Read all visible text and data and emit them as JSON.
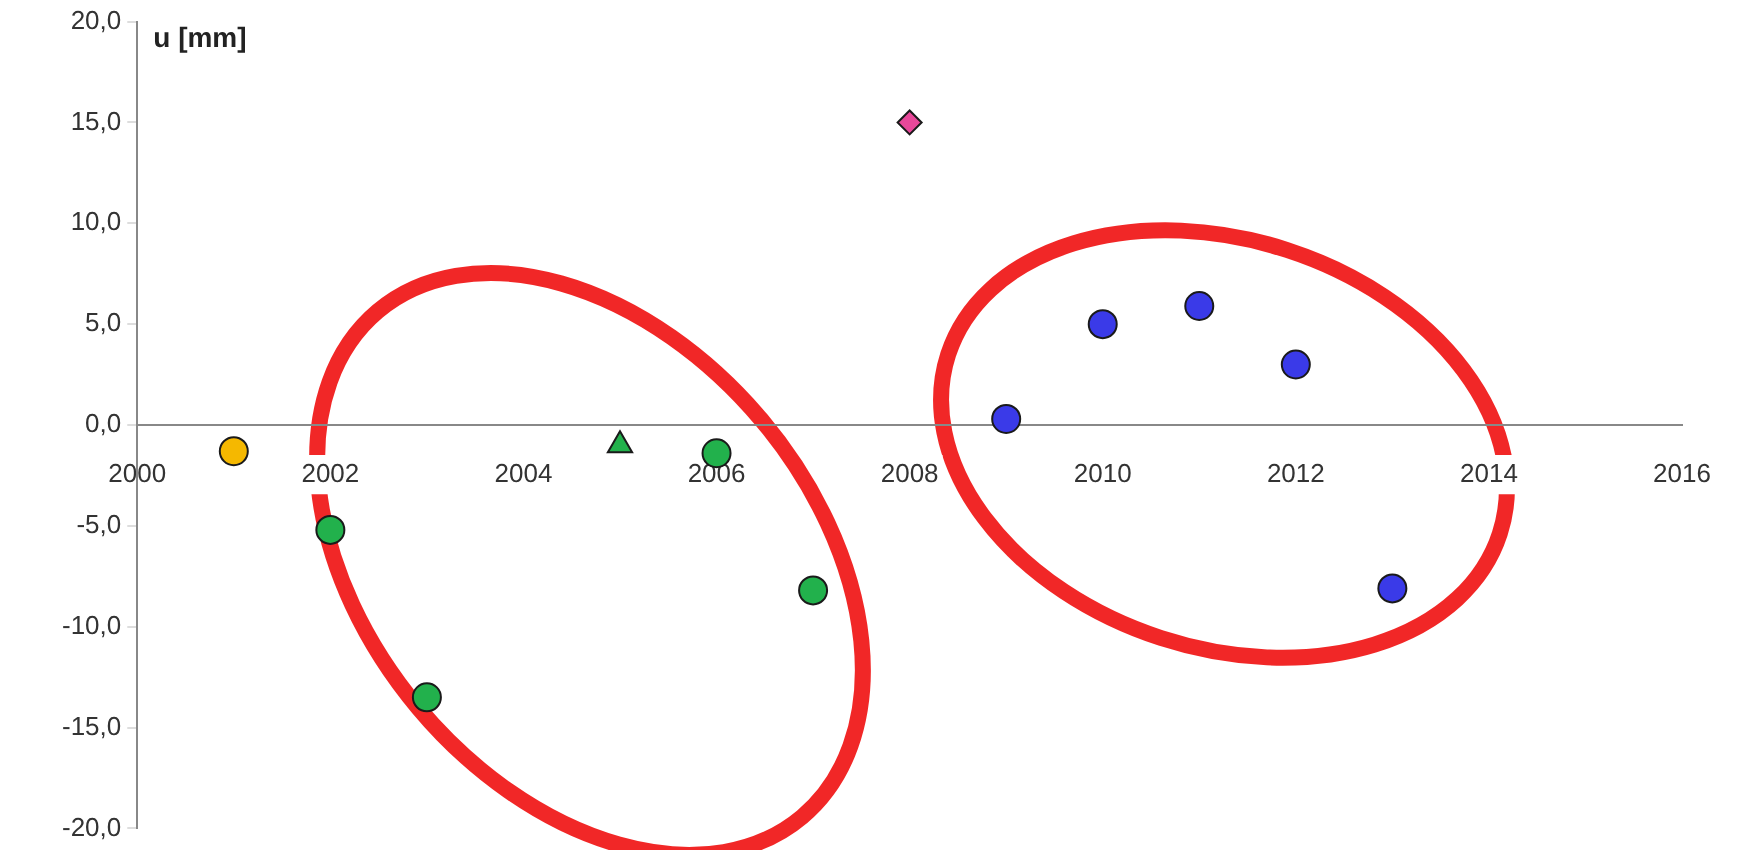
{
  "chart_data": {
    "type": "scatter",
    "ylabel": "u [mm]",
    "xlim": [
      2000,
      2016
    ],
    "xticks": [
      2000,
      2002,
      2004,
      2006,
      2008,
      2010,
      2012,
      2014,
      2016
    ],
    "ylim": [
      -20,
      20
    ],
    "yticks": [
      {
        "value": -20,
        "label": "-20,0"
      },
      {
        "value": -15,
        "label": "-15,0"
      },
      {
        "value": -10,
        "label": "-10,0"
      },
      {
        "value": -5,
        "label": "-5,0"
      },
      {
        "value": 0,
        "label": "0,0"
      },
      {
        "value": 5,
        "label": "5,0"
      },
      {
        "value": 10,
        "label": "10,0"
      },
      {
        "value": 15,
        "label": "15,0"
      },
      {
        "value": 20,
        "label": "20,0"
      }
    ],
    "grid": false,
    "legend": false,
    "series": [
      {
        "color": "#f5b800",
        "marker": "circle",
        "x": [
          2001
        ],
        "values": [
          -1.3
        ]
      },
      {
        "color": "#22b14c",
        "marker": "circle",
        "x": [
          2002,
          2003,
          2006,
          2007
        ],
        "values": [
          -5.2,
          -13.5,
          -1.4,
          -8.2
        ]
      },
      {
        "color": "#22b14c",
        "marker": "triangle",
        "x": [
          2005
        ],
        "values": [
          -1.0
        ]
      },
      {
        "color": "#e8489a",
        "marker": "diamond",
        "x": [
          2008
        ],
        "values": [
          15.0
        ]
      },
      {
        "color": "#3a3ae8",
        "marker": "circle",
        "x": [
          2009,
          2010,
          2011,
          2012,
          2013
        ],
        "values": [
          0.3,
          5.0,
          5.9,
          3.0,
          -8.1
        ]
      }
    ]
  }
}
